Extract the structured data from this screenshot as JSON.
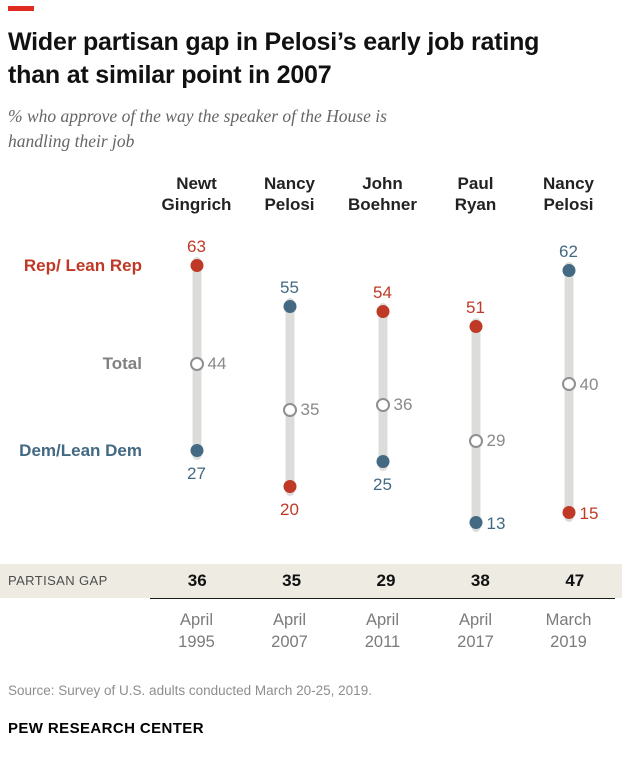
{
  "header": {
    "title": "Wider partisan gap in Pelosi’s early job rating than at similar point in 2007",
    "subtitle": "% who approve of the way the speaker of the House is handling their job"
  },
  "source": "Source: Survey of U.S. adults conducted March 20-25, 2019.",
  "brand": "PEW RESEARCH CENTER",
  "chart_data": {
    "type": "dumbbell",
    "title": "Wider partisan gap in Pelosi’s early job rating than at similar point in 2007",
    "subtitle": "% who approve of the way the speaker of the House is handling their job",
    "gap_label": "PARTISAN GAP",
    "legend_labels": [
      {
        "id": "rep",
        "text": "Rep/ Lean Rep",
        "at_value": 63
      },
      {
        "id": "total",
        "text": "Total",
        "at_value": 44
      },
      {
        "id": "dem",
        "text": "Dem/Lean Dem",
        "at_value": 27
      }
    ],
    "scale": {
      "min": 6,
      "max": 70
    },
    "columns": [
      {
        "speaker_lines": [
          "Newt",
          "Gingrich"
        ],
        "date_lines": [
          "April",
          "1995"
        ],
        "gap": 36,
        "points": [
          {
            "group": "rep",
            "value": 63,
            "label_pos": "above"
          },
          {
            "group": "total",
            "value": 44,
            "label_pos": "right"
          },
          {
            "group": "dem",
            "value": 27,
            "label_pos": "below"
          }
        ]
      },
      {
        "speaker_lines": [
          "Nancy",
          "Pelosi"
        ],
        "date_lines": [
          "April",
          "2007"
        ],
        "gap": 35,
        "points": [
          {
            "group": "dem",
            "value": 55,
            "label_pos": "above"
          },
          {
            "group": "total",
            "value": 35,
            "label_pos": "right"
          },
          {
            "group": "rep",
            "value": 20,
            "label_pos": "below"
          }
        ]
      },
      {
        "speaker_lines": [
          "John",
          "Boehner"
        ],
        "date_lines": [
          "April",
          "2011"
        ],
        "gap": 29,
        "points": [
          {
            "group": "rep",
            "value": 54,
            "label_pos": "above"
          },
          {
            "group": "total",
            "value": 36,
            "label_pos": "right"
          },
          {
            "group": "dem",
            "value": 25,
            "label_pos": "below"
          }
        ]
      },
      {
        "speaker_lines": [
          "Paul",
          "Ryan"
        ],
        "date_lines": [
          "April",
          "2017"
        ],
        "gap": 38,
        "points": [
          {
            "group": "rep",
            "value": 51,
            "label_pos": "above"
          },
          {
            "group": "total",
            "value": 29,
            "label_pos": "right"
          },
          {
            "group": "dem",
            "value": 13,
            "label_pos": "right"
          }
        ]
      },
      {
        "speaker_lines": [
          "Nancy",
          "Pelosi"
        ],
        "date_lines": [
          "March",
          "2019"
        ],
        "gap": 47,
        "points": [
          {
            "group": "dem",
            "value": 62,
            "label_pos": "above"
          },
          {
            "group": "total",
            "value": 40,
            "label_pos": "right"
          },
          {
            "group": "rep",
            "value": 15,
            "label_pos": "right"
          }
        ]
      }
    ],
    "colors": {
      "rep": "#bf3927",
      "dem": "#436983",
      "total": "#8a8a8a",
      "bar": "#dcdcda",
      "gap_bg": "#eeece2",
      "accent": "#e02b20"
    }
  }
}
